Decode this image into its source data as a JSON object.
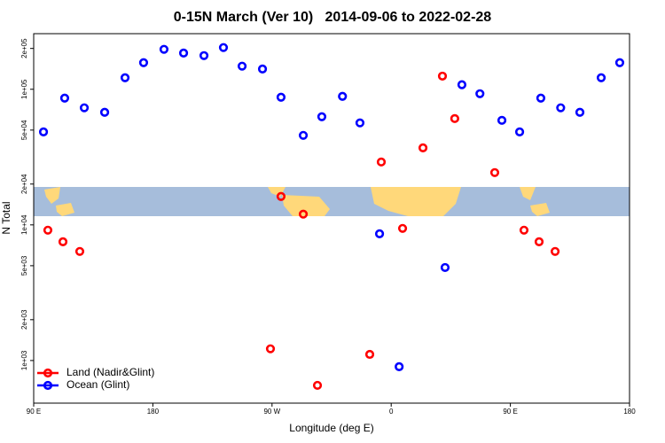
{
  "chart_data": {
    "type": "scatter",
    "title": "0-15N March (Ver 10)   2014-09-06 to 2022-02-28",
    "x_label": "Longitude (deg E)",
    "y_label": "N Total",
    "log_y": true,
    "legend": "lower left",
    "xlim": [
      90,
      540
    ],
    "xticks": [
      {
        "value": 90,
        "label": "90 E"
      },
      {
        "value": 180,
        "label": "180"
      },
      {
        "value": 270,
        "label": "90 W"
      },
      {
        "value": 360,
        "label": "0"
      },
      {
        "value": 450,
        "label": "90 E"
      },
      {
        "value": 540,
        "label": "180"
      }
    ],
    "ylim": [
      485,
      257000
    ],
    "yticks": [
      {
        "value": 1000,
        "label": "1e+03"
      },
      {
        "value": 2000,
        "label": "2e+03"
      },
      {
        "value": 5000,
        "label": "5e+03"
      },
      {
        "value": 10000,
        "label": "1e+04"
      },
      {
        "value": 20000,
        "label": "2e+04"
      },
      {
        "value": 50000,
        "label": "5e+04"
      },
      {
        "value": 100000,
        "label": "1e+05"
      },
      {
        "value": 200000,
        "label": "2e+05"
      }
    ],
    "series": [
      {
        "name": "Land (Nadir&Glint)",
        "color": "#ff0000",
        "x": [
          100.7,
          112.1,
          124.8,
          268.8,
          276.8,
          293.6,
          304.3,
          343.8,
          352.5,
          368.6,
          384.0,
          398.7,
          408.0,
          438.2,
          460.3,
          471.7,
          483.8
        ],
        "values": [
          9140,
          7510,
          6370,
          1220,
          16200,
          12000,
          656,
          1110,
          29100,
          9420,
          37000,
          125000,
          60800,
          24300,
          9140,
          7510,
          6370
        ]
      },
      {
        "name": "Ocean (Glint)",
        "color": "#0000ff",
        "x": [
          97.4,
          113.4,
          128.2,
          143.6,
          159.0,
          173.0,
          188.4,
          203.2,
          218.6,
          233.3,
          247.4,
          262.8,
          276.8,
          293.6,
          307.6,
          323.2,
          336.4,
          351.2,
          366.0,
          400.7,
          413.4,
          427.0,
          443.6,
          457.0,
          473.0,
          488.0,
          502.5,
          518.6,
          532.6
        ],
        "values": [
          48500,
          86000,
          73000,
          67600,
          121600,
          157000,
          197000,
          185000,
          177000,
          203000,
          148000,
          141000,
          87300,
          45700,
          62700,
          88700,
          56500,
          8600,
          900,
          4850,
          108000,
          92700,
          59000,
          48500,
          86000,
          73000,
          67600,
          121600,
          157000
        ]
      }
    ]
  }
}
